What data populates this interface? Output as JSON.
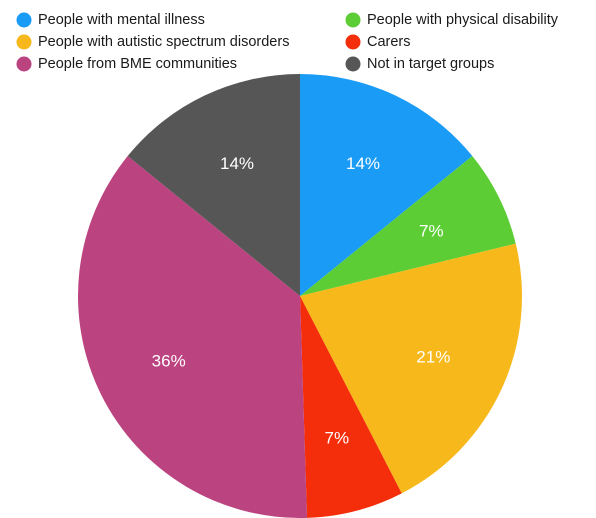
{
  "chart_data": {
    "type": "pie",
    "title": "",
    "legend_position": "top",
    "series": [
      {
        "name": "People with mental illness",
        "value": 14,
        "label": "14%",
        "color": "#1a9bf5"
      },
      {
        "name": "People with physical disability",
        "value": 7,
        "label": "7%",
        "color": "#5ccd35"
      },
      {
        "name": "People with autistic spectrum disorders",
        "value": 21,
        "label": "21%",
        "color": "#f6b81b"
      },
      {
        "name": "Carers",
        "value": 7,
        "label": "7%",
        "color": "#f42d0a"
      },
      {
        "name": "People from BME communities",
        "value": 36,
        "label": "36%",
        "color": "#bb4480"
      },
      {
        "name": "Not in target groups",
        "value": 14,
        "label": "14%",
        "color": "#565656"
      }
    ],
    "legend_order": [
      0,
      1,
      2,
      3,
      4,
      5
    ]
  }
}
